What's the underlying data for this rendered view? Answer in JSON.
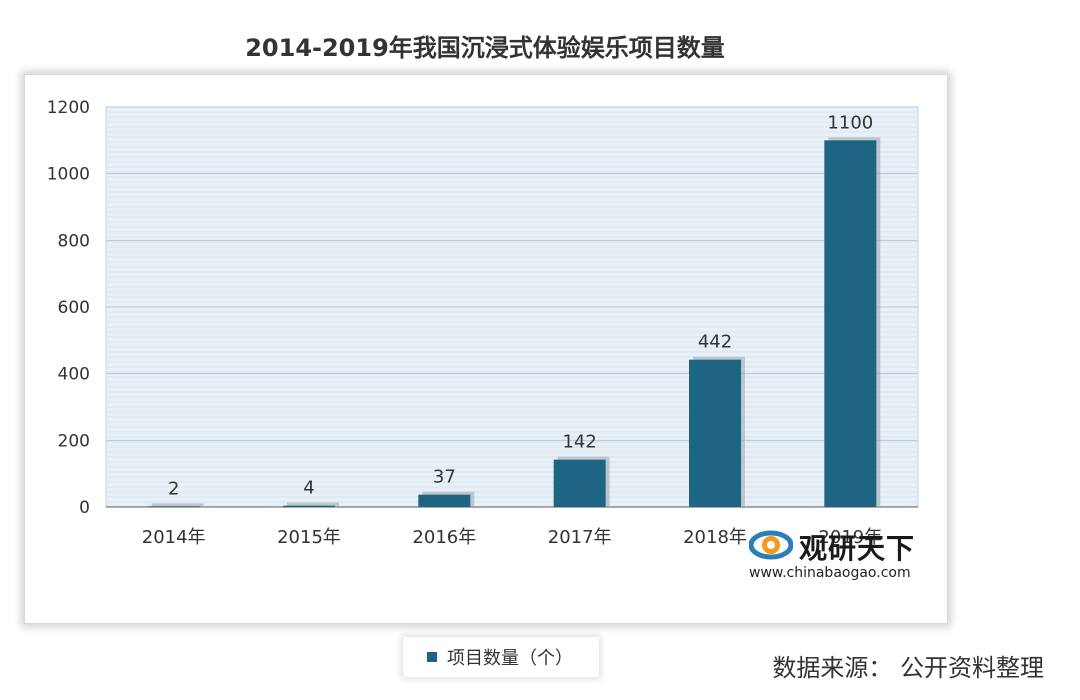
{
  "title": "2014-2019年我国沉浸式体验娱乐项目数量",
  "source_text": "数据来源： 公开资料整理",
  "watermark": {
    "name": "观研天下",
    "url": "www.chinabaogao.com"
  },
  "colors": {
    "bar": "#1e6483",
    "plot_bg": "#e9f1f8",
    "grid": "#b9c7d3"
  },
  "chart_data": {
    "type": "bar",
    "categories": [
      "2014年",
      "2015年",
      "2016年",
      "2017年",
      "2018年",
      "2019年"
    ],
    "series": [
      {
        "name": "项目数量（个）",
        "values": [
          2,
          4,
          37,
          142,
          442,
          1100
        ]
      }
    ],
    "data_labels": [
      "2",
      "4",
      "37",
      "142",
      "442",
      "1100"
    ],
    "y_ticks": [
      0,
      200,
      400,
      600,
      800,
      1000,
      1200
    ],
    "ylim": [
      0,
      1200
    ],
    "grid": true,
    "legend_position": "bottom",
    "title": "2014-2019年我国沉浸式体验娱乐项目数量",
    "xlabel": "",
    "ylabel": ""
  }
}
